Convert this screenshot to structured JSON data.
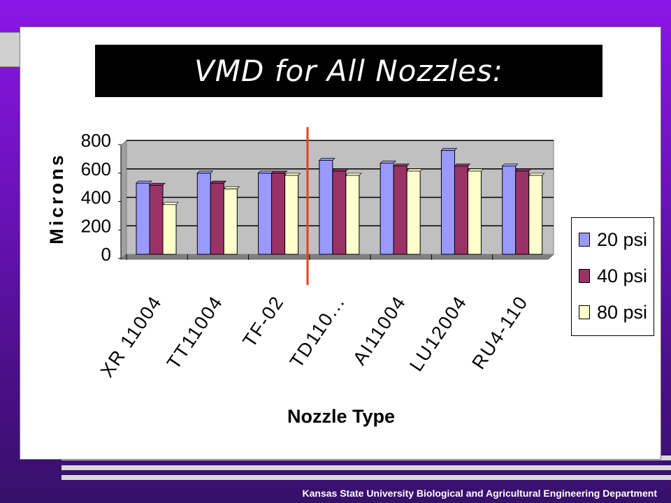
{
  "slide": {
    "title": "VMD for All Nozzles:",
    "footer": "Kansas State University Biological and Agricultural Engineering Department"
  },
  "chart_data": {
    "type": "bar",
    "title": "",
    "xlabel": "Nozzle Type",
    "ylabel": "Microns",
    "ylim": [
      0,
      800
    ],
    "yticks": [
      "0",
      "200",
      "400",
      "600",
      "800"
    ],
    "grid": true,
    "legend_position": "right",
    "categories": [
      "XR 11004",
      "TT11004",
      "TF-02",
      "TD110...",
      "AI11004",
      "LU12004",
      "RU4-110"
    ],
    "series": [
      {
        "name": "20 psi",
        "color": "#9999ff",
        "values": [
          500,
          570,
          570,
          660,
          640,
          730,
          620
        ]
      },
      {
        "name": "40 psi",
        "color": "#993366",
        "values": [
          485,
          500,
          570,
          585,
          620,
          620,
          585
        ]
      },
      {
        "name": "80 psi",
        "color": "#ffffcc",
        "values": [
          350,
          460,
          555,
          555,
          585,
          585,
          555
        ]
      }
    ],
    "plot_background": "#c0c0c0",
    "divider_color": "#e8401c"
  }
}
